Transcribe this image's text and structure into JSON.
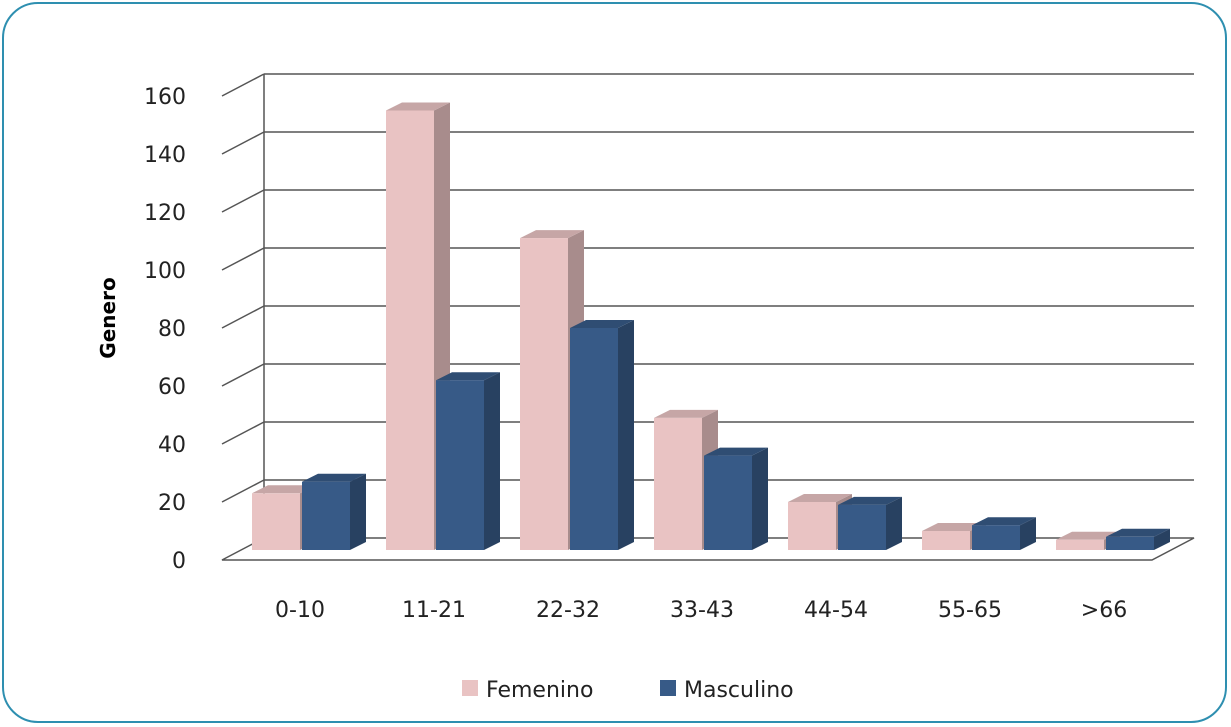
{
  "chart_data": {
    "type": "bar",
    "categories": [
      "0-10",
      "11-21",
      "22-32",
      "33-43",
      "44-54",
      "55-65",
      ">66"
    ],
    "series": [
      {
        "name": "Femenino",
        "values": [
          23,
          155,
          111,
          49,
          20,
          10,
          7
        ],
        "color": "#e9c3c3"
      },
      {
        "name": "Masculino",
        "values": [
          27,
          62,
          80,
          36,
          19,
          12,
          8
        ],
        "color": "#375a87"
      }
    ],
    "ylabel": "Genero",
    "xlabel": "",
    "title": "",
    "ylim": [
      0,
      160
    ],
    "yticks": [
      0,
      20,
      40,
      60,
      80,
      100,
      120,
      140,
      160
    ],
    "grid": true,
    "style": "3d-clustered",
    "legend_position": "bottom"
  },
  "colors": {
    "frame_border": "#2e8fb0",
    "gridline": "#555555"
  }
}
